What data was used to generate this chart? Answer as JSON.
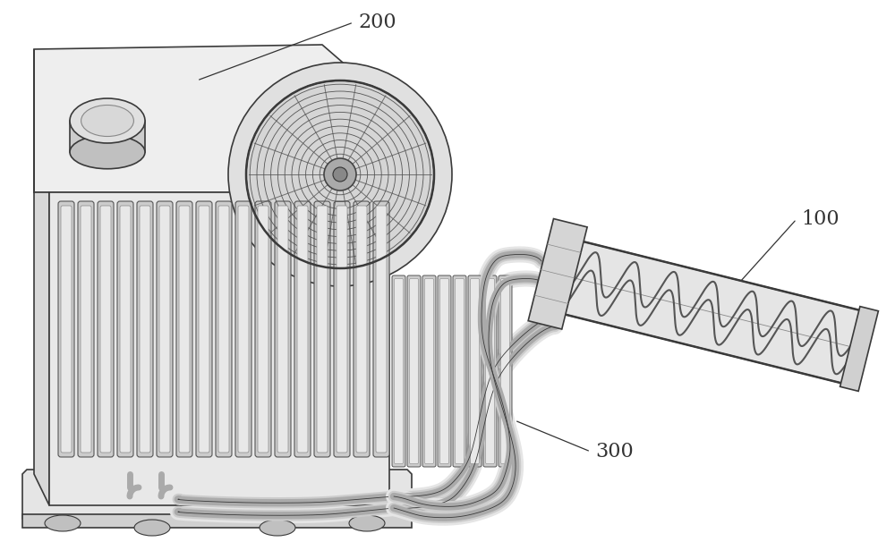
{
  "background_color": "#ffffff",
  "line_color": "#3a3a3a",
  "label_200": "200",
  "label_100": "100",
  "label_300": "300",
  "fig_width": 10.0,
  "fig_height": 6.06,
  "dpi": 100
}
